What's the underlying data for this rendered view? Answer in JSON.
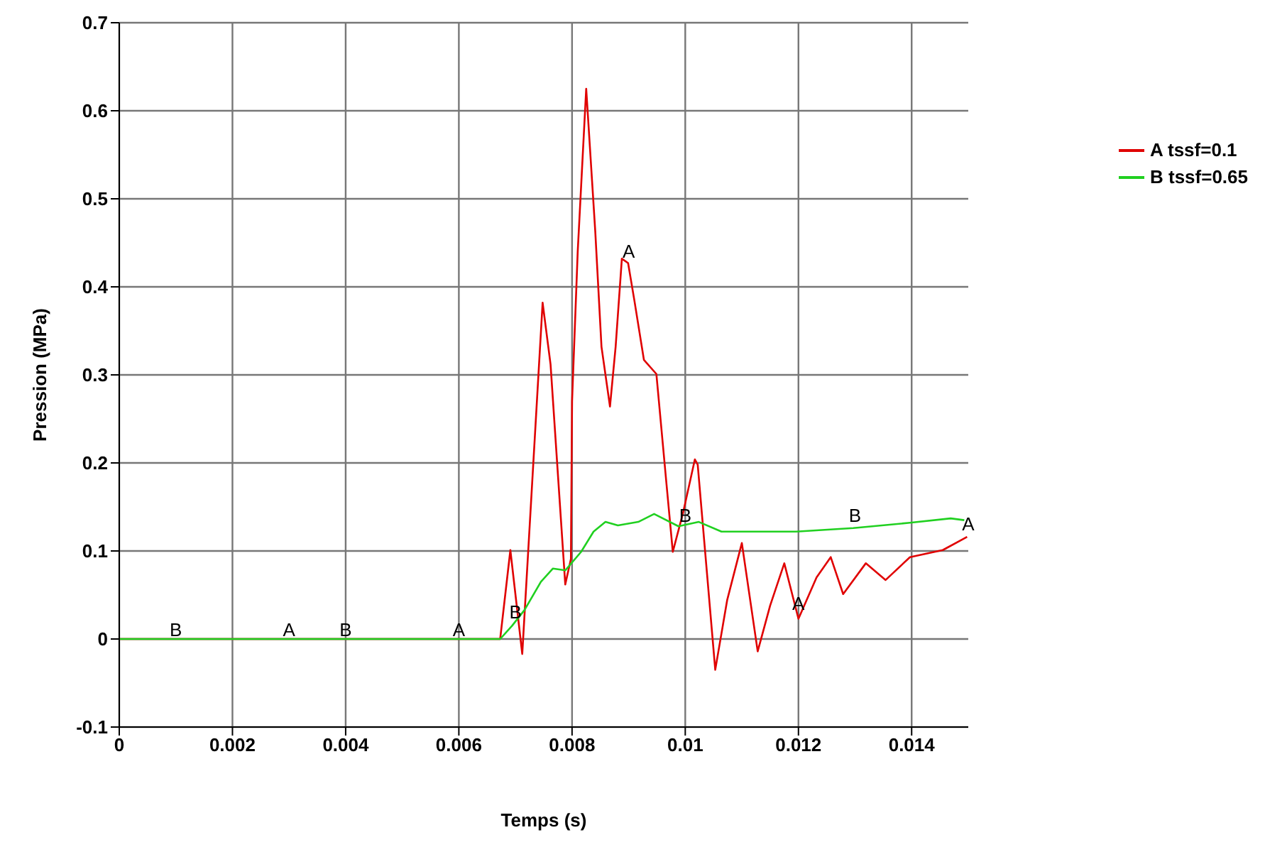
{
  "chart_data": {
    "type": "line",
    "xlabel": "Temps (s)",
    "ylabel": "Pression (MPa)",
    "xlim": [
      0,
      0.015
    ],
    "xticks": [
      0,
      0.002,
      0.004,
      0.006,
      0.008,
      0.01,
      0.012,
      0.014
    ],
    "ylim": [
      -0.1,
      0.7
    ],
    "yticks": [
      -0.1,
      0,
      0.1,
      0.2,
      0.3,
      0.4,
      0.5,
      0.6,
      0.7
    ],
    "grid": true,
    "legend": "top right",
    "marker": "none",
    "line_style": "solid",
    "series": [
      {
        "name": "A tssf=0.1",
        "color": "#e00000",
        "x": [
          0,
          0.006,
          0.00673,
          0.00691,
          0.00712,
          0.00748,
          0.00762,
          0.00788,
          0.00798,
          0.008,
          0.0081,
          0.00825,
          0.00841,
          0.00852,
          0.00867,
          0.00877,
          0.00888,
          0.00899,
          0.0091,
          0.00927,
          0.00949,
          0.00967,
          0.00978,
          0.00996,
          0.01017,
          0.01022,
          0.01039,
          0.01053,
          0.01074,
          0.011,
          0.01128,
          0.0115,
          0.01175,
          0.012,
          0.01232,
          0.01257,
          0.01279,
          0.01319,
          0.01354,
          0.01397,
          0.01455,
          0.01498
        ],
        "values": [
          0,
          0,
          0,
          0.101,
          -0.017,
          0.382,
          0.312,
          0.062,
          0.091,
          0.27,
          0.44,
          0.625,
          0.463,
          0.332,
          0.264,
          0.332,
          0.432,
          0.427,
          0.385,
          0.317,
          0.301,
          0.175,
          0.099,
          0.143,
          0.204,
          0.198,
          0.07,
          -0.035,
          0.044,
          0.109,
          -0.014,
          0.038,
          0.086,
          0.023,
          0.07,
          0.093,
          0.051,
          0.086,
          0.067,
          0.093,
          0.101,
          0.116
        ]
      },
      {
        "name": "B tssf=0.65",
        "color": "#20d020",
        "x": [
          0,
          0.006,
          0.00673,
          0.00694,
          0.00716,
          0.00745,
          0.00766,
          0.00788,
          0.00816,
          0.00838,
          0.00859,
          0.00881,
          0.00917,
          0.00945,
          0.00988,
          0.01024,
          0.01064,
          0.01196,
          0.01297,
          0.01397,
          0.01469,
          0.01493
        ],
        "values": [
          0,
          0,
          0,
          0.015,
          0.033,
          0.065,
          0.08,
          0.078,
          0.099,
          0.122,
          0.133,
          0.129,
          0.133,
          0.142,
          0.128,
          0.133,
          0.122,
          0.122,
          0.126,
          0.132,
          0.137,
          0.135
        ]
      }
    ],
    "annotations": [
      {
        "text": "B",
        "x": 0.001,
        "y": 0
      },
      {
        "text": "A",
        "x": 0.003,
        "y": 0
      },
      {
        "text": "B",
        "x": 0.004,
        "y": 0
      },
      {
        "text": "A",
        "x": 0.006,
        "y": 0
      },
      {
        "text": "B",
        "x": 0.007,
        "y": 0.02
      },
      {
        "text": "A",
        "x": 0.009,
        "y": 0.43
      },
      {
        "text": "B",
        "x": 0.01,
        "y": 0.13
      },
      {
        "text": "A",
        "x": 0.012,
        "y": 0.03
      },
      {
        "text": "B",
        "x": 0.013,
        "y": 0.13
      },
      {
        "text": "A",
        "x": 0.015,
        "y": 0.12
      }
    ]
  }
}
